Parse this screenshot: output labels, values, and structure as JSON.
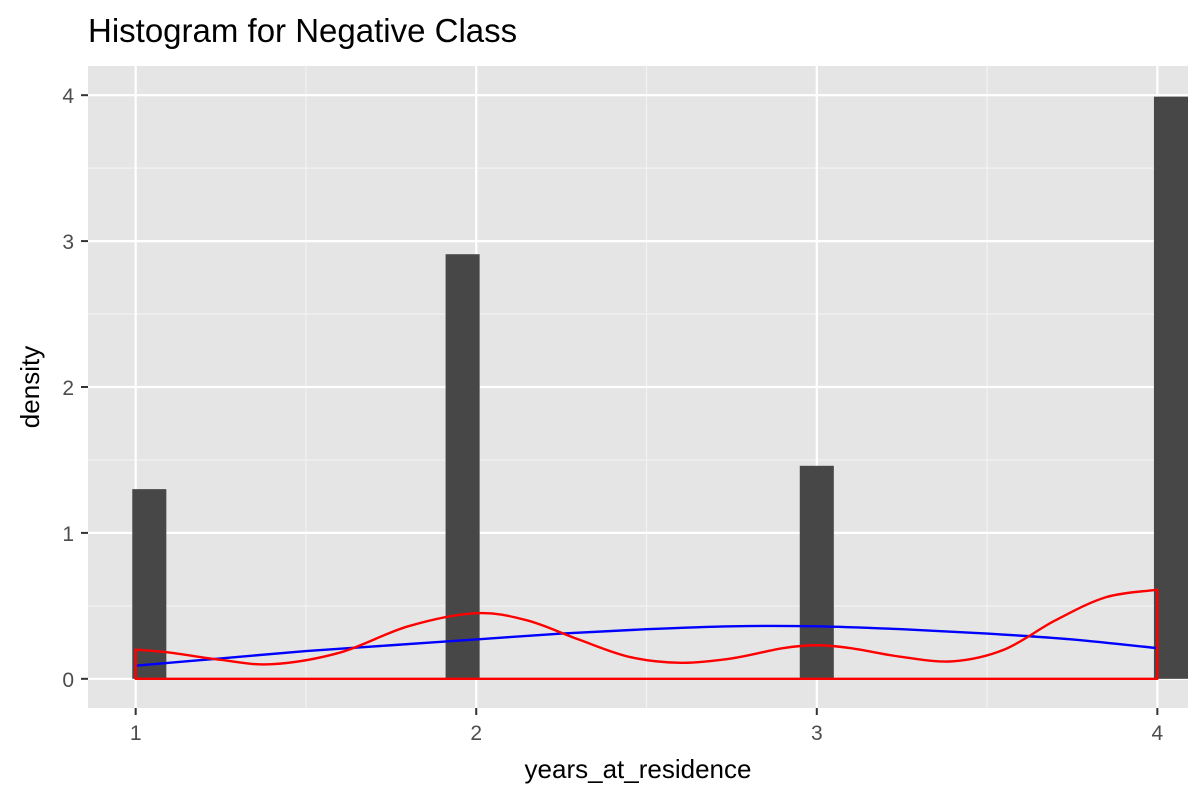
{
  "chart_data": {
    "type": "bar",
    "title": "Histogram for Negative Class",
    "xlabel": "years_at_residence",
    "ylabel": "density",
    "xlim": [
      0.86,
      4.09
    ],
    "ylim": [
      -0.2,
      4.2
    ],
    "x_ticks": [
      1,
      2,
      3,
      4
    ],
    "y_ticks": [
      0,
      1,
      2,
      3,
      4
    ],
    "grid": true,
    "background": "#e5e5e5",
    "bar_color": "#474747",
    "bars": [
      {
        "x_start": 0.99,
        "x_end": 1.09,
        "value": 1.3
      },
      {
        "x_start": 1.91,
        "x_end": 2.01,
        "value": 2.91
      },
      {
        "x_start": 2.95,
        "x_end": 3.05,
        "value": 1.46
      },
      {
        "x_start": 3.99,
        "x_end": 4.09,
        "value": 3.99
      }
    ],
    "series": [
      {
        "type": "line",
        "color": "#0000ff",
        "x": [
          1.0,
          1.25,
          1.5,
          1.75,
          2.0,
          2.25,
          2.5,
          2.75,
          3.0,
          3.25,
          3.5,
          3.75,
          4.0
        ],
        "y": [
          0.09,
          0.14,
          0.19,
          0.23,
          0.27,
          0.31,
          0.34,
          0.36,
          0.36,
          0.34,
          0.31,
          0.27,
          0.21
        ]
      },
      {
        "type": "area",
        "color": "#ff0000",
        "x": [
          1.0,
          1.1,
          1.25,
          1.4,
          1.6,
          1.8,
          2.0,
          2.15,
          2.3,
          2.45,
          2.6,
          2.75,
          2.9,
          3.0,
          3.1,
          3.25,
          3.4,
          3.55,
          3.7,
          3.85,
          4.0
        ],
        "y": [
          0.2,
          0.18,
          0.13,
          0.1,
          0.18,
          0.36,
          0.45,
          0.4,
          0.27,
          0.15,
          0.11,
          0.14,
          0.21,
          0.23,
          0.21,
          0.15,
          0.12,
          0.2,
          0.4,
          0.56,
          0.61
        ]
      }
    ]
  }
}
